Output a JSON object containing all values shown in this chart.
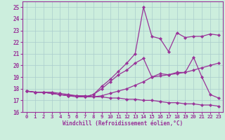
{
  "background_color": "#cceedd",
  "grid_color": "#aacccc",
  "line_color": "#993399",
  "xlabel": "Windchill (Refroidissement éolien,°C)",
  "xlim": [
    -0.5,
    23.5
  ],
  "ylim": [
    16,
    25.5
  ],
  "yticks": [
    16,
    17,
    18,
    19,
    20,
    21,
    22,
    23,
    24,
    25
  ],
  "xticks": [
    0,
    1,
    2,
    3,
    4,
    5,
    6,
    7,
    8,
    9,
    10,
    11,
    12,
    13,
    14,
    15,
    16,
    17,
    18,
    19,
    20,
    21,
    22,
    23
  ],
  "series": [
    [
      17.8,
      17.7,
      17.7,
      17.7,
      17.6,
      17.5,
      17.4,
      17.4,
      17.3,
      17.3,
      17.2,
      17.2,
      17.1,
      17.1,
      17.0,
      17.0,
      16.9,
      16.8,
      16.8,
      16.7,
      16.7,
      16.6,
      16.6,
      16.5
    ],
    [
      17.8,
      17.7,
      17.7,
      17.6,
      17.5,
      17.4,
      17.3,
      17.3,
      17.3,
      17.4,
      17.6,
      17.8,
      18.0,
      18.3,
      18.6,
      19.0,
      19.1,
      19.2,
      19.3,
      19.4,
      19.6,
      19.8,
      20.0,
      20.2
    ],
    [
      17.8,
      17.7,
      17.7,
      17.6,
      17.5,
      17.4,
      17.4,
      17.3,
      17.5,
      18.0,
      18.6,
      19.2,
      19.6,
      20.2,
      20.6,
      19.0,
      19.3,
      19.2,
      19.4,
      19.4,
      20.7,
      19.0,
      17.5,
      17.2
    ],
    [
      17.8,
      17.7,
      17.7,
      17.6,
      17.5,
      17.4,
      17.4,
      17.3,
      17.5,
      18.2,
      18.8,
      19.5,
      20.2,
      21.0,
      25.0,
      22.5,
      22.3,
      21.2,
      22.8,
      22.4,
      22.5,
      22.5,
      22.7,
      22.6
    ]
  ]
}
